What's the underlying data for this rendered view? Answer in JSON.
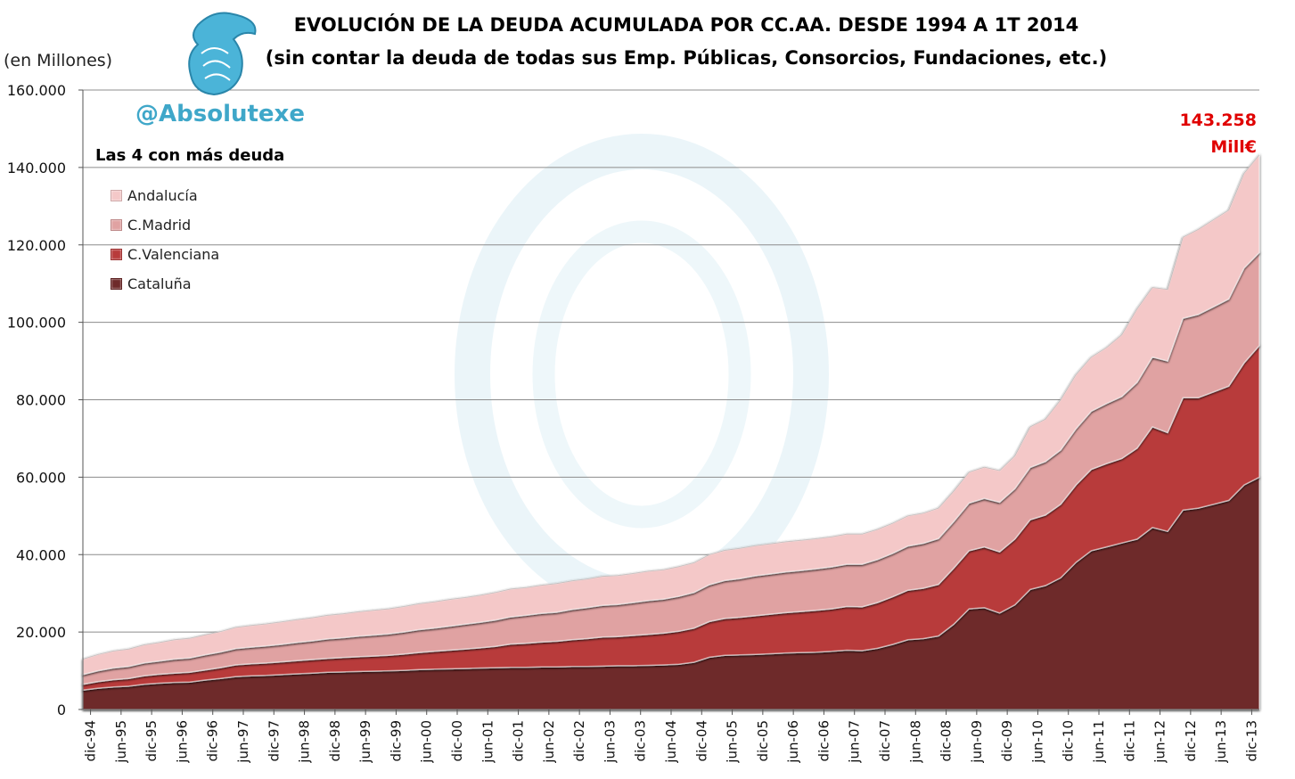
{
  "header": {
    "title": "EVOLUCIÓN DE LA DEUDA ACUMULADA POR CC.AA. DESDE 1994 A 1T 2014",
    "subtitle": "(sin contar la deuda de todas sus Emp. Públicas, Consorcios, Fundaciones, etc.)",
    "units": "(en Millones)",
    "handle": "@Absolutexe",
    "legend_title": "Las 4 con más deuda",
    "annotation_value": "143.258",
    "annotation_unit": "Mill€"
  },
  "colors": {
    "Cataluña": "#6E2A2A",
    "C.Valenciana": "#B83B3B",
    "C.Madrid": "#E0A2A2",
    "Andalucía": "#F4C8C8",
    "annotation": "#E00000",
    "handle": "#3FA7C9",
    "watermark": "#E3F1F7"
  },
  "chart_data": {
    "type": "area",
    "stacked": true,
    "ylim": [
      0,
      160000
    ],
    "yticks": [
      0,
      20000,
      40000,
      60000,
      80000,
      100000,
      120000,
      140000,
      160000
    ],
    "ytick_labels": [
      "0",
      "20.000",
      "40.000",
      "60.000",
      "80.000",
      "100.000",
      "120.000",
      "140.000",
      "160.000"
    ],
    "grid": "horizontal",
    "legend_position": "top-left",
    "tick_labels": [
      "dic-94",
      "jun-95",
      "dic-95",
      "jun-96",
      "dic-96",
      "jun-97",
      "dic-97",
      "jun-98",
      "dic-98",
      "jun-99",
      "dic-99",
      "jun-00",
      "dic-00",
      "jun-01",
      "dic-01",
      "jun-02",
      "dic-02",
      "jun-03",
      "dic-03",
      "jun-04",
      "dic-04",
      "jun-05",
      "dic-05",
      "jun-06",
      "dic-06",
      "jun-07",
      "dic-07",
      "jun-08",
      "dic-08",
      "jun-09",
      "dic-09",
      "jun-10",
      "dic-10",
      "jun-11",
      "dic-11",
      "jun-12",
      "dic-12",
      "jun-13",
      "dic-13"
    ],
    "periods": [
      "dic-94",
      "mar-95",
      "jun-95",
      "sep-95",
      "dic-95",
      "mar-96",
      "jun-96",
      "sep-96",
      "dic-96",
      "mar-97",
      "jun-97",
      "sep-97",
      "dic-97",
      "mar-98",
      "jun-98",
      "sep-98",
      "dic-98",
      "mar-99",
      "jun-99",
      "sep-99",
      "dic-99",
      "mar-00",
      "jun-00",
      "sep-00",
      "dic-00",
      "mar-01",
      "jun-01",
      "sep-01",
      "dic-01",
      "mar-02",
      "jun-02",
      "sep-02",
      "dic-02",
      "mar-03",
      "jun-03",
      "sep-03",
      "dic-03",
      "mar-04",
      "jun-04",
      "sep-04",
      "dic-04",
      "mar-05",
      "jun-05",
      "sep-05",
      "dic-05",
      "mar-06",
      "jun-06",
      "sep-06",
      "dic-06",
      "mar-07",
      "jun-07",
      "sep-07",
      "dic-07",
      "mar-08",
      "jun-08",
      "sep-08",
      "dic-08",
      "mar-09",
      "jun-09",
      "sep-09",
      "dic-09",
      "mar-10",
      "jun-10",
      "sep-10",
      "dic-10",
      "mar-11",
      "jun-11",
      "sep-11",
      "dic-11",
      "mar-12",
      "jun-12",
      "sep-12",
      "dic-12",
      "mar-13",
      "jun-13",
      "sep-13",
      "dic-13",
      "mar-14"
    ],
    "series": [
      {
        "name": "Cataluña",
        "values": [
          5000,
          5500,
          5800,
          6000,
          6500,
          6800,
          7000,
          7100,
          7600,
          8000,
          8500,
          8700,
          8800,
          9000,
          9200,
          9400,
          9600,
          9700,
          9800,
          9900,
          10000,
          10100,
          10300,
          10400,
          10500,
          10600,
          10700,
          10800,
          10900,
          10900,
          11000,
          11000,
          11100,
          11100,
          11200,
          11300,
          11300,
          11400,
          11500,
          11700,
          12200,
          13500,
          14000,
          14100,
          14200,
          14400,
          14600,
          14700,
          14800,
          15000,
          15300,
          15200,
          15800,
          16800,
          18000,
          18300,
          19000,
          22000,
          26000,
          26300,
          24900,
          27000,
          31000,
          32000,
          34000,
          38000,
          41000,
          42000,
          43000,
          44000,
          47000,
          46000,
          51500,
          52000,
          53000,
          54000,
          58000,
          60000
        ]
      },
      {
        "name": "C.Valenciana",
        "values": [
          1500,
          1700,
          1900,
          2000,
          2200,
          2300,
          2400,
          2500,
          2600,
          2800,
          3000,
          3100,
          3200,
          3300,
          3400,
          3500,
          3600,
          3700,
          3800,
          3900,
          4000,
          4200,
          4400,
          4600,
          4800,
          5000,
          5200,
          5500,
          6000,
          6200,
          6400,
          6600,
          6900,
          7200,
          7500,
          7500,
          7800,
          8000,
          8200,
          8500,
          8800,
          9200,
          9500,
          9700,
          10000,
          10200,
          10400,
          10600,
          10800,
          11000,
          11300,
          11300,
          11800,
          12300,
          12800,
          13000,
          13300,
          14500,
          15000,
          15700,
          15800,
          17000,
          18000,
          18200,
          19000,
          20000,
          21000,
          21500,
          21800,
          23500,
          26000,
          25500,
          29000,
          28500,
          29000,
          29500,
          31500,
          34000
        ]
      },
      {
        "name": "C.Madrid",
        "values": [
          2500,
          2800,
          3000,
          3100,
          3300,
          3400,
          3600,
          3700,
          3900,
          4000,
          4200,
          4300,
          4400,
          4500,
          4700,
          4800,
          5000,
          5100,
          5300,
          5400,
          5500,
          5700,
          5900,
          6000,
          6200,
          6400,
          6600,
          6800,
          7000,
          7200,
          7400,
          7500,
          7800,
          8000,
          8200,
          8300,
          8500,
          8700,
          8800,
          9000,
          9200,
          9500,
          9800,
          10000,
          10300,
          10400,
          10500,
          10600,
          10700,
          10800,
          10900,
          11000,
          11100,
          11200,
          11400,
          11600,
          11800,
          12000,
          12300,
          12500,
          12800,
          13000,
          13500,
          13800,
          14000,
          14500,
          15000,
          15500,
          16000,
          17000,
          18000,
          18500,
          20500,
          21500,
          22000,
          22500,
          24500,
          24000
        ]
      },
      {
        "name": "Andalucía",
        "values": [
          4000,
          4200,
          4400,
          4500,
          4700,
          4800,
          5000,
          5100,
          5200,
          5300,
          5500,
          5600,
          5700,
          5800,
          5900,
          6000,
          6100,
          6200,
          6300,
          6400,
          6500,
          6600,
          6700,
          6800,
          6900,
          6900,
          7000,
          7100,
          7200,
          7200,
          7300,
          7400,
          7400,
          7400,
          7500,
          7500,
          7500,
          7600,
          7600,
          7700,
          7700,
          7800,
          7800,
          7800,
          7800,
          7800,
          7800,
          7800,
          7800,
          7800,
          7800,
          7800,
          7800,
          7800,
          7800,
          7800,
          7900,
          7900,
          8000,
          8100,
          8200,
          8500,
          10500,
          11000,
          13000,
          14000,
          14000,
          14500,
          16000,
          19000,
          18000,
          18500,
          21000,
          22000,
          22500,
          23000,
          24500,
          25258
        ]
      }
    ]
  }
}
